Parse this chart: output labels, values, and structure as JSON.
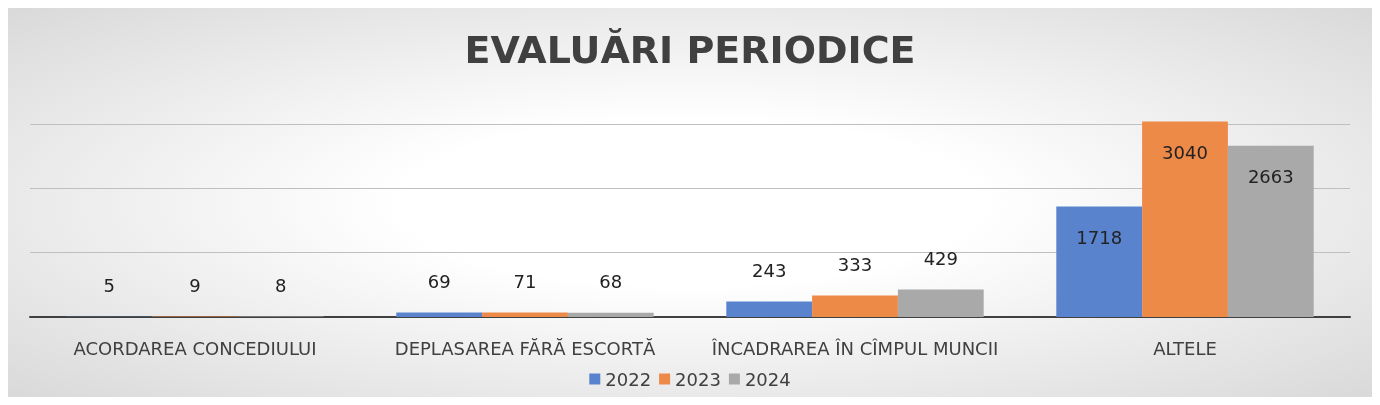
{
  "chart_data": {
    "type": "bar",
    "title": "EVALUĂRI PERIODICE",
    "categories": [
      "ACORDAREA CONCEDIULUI",
      "DEPLASAREA FĂRĂ ESCORTĂ",
      "ÎNCADRAREA ÎN CÎMPUL MUNCII",
      "ALTELE"
    ],
    "series": [
      {
        "name": "2022",
        "color": "#5a83cd",
        "values": [
          5,
          69,
          243,
          1718
        ]
      },
      {
        "name": "2023",
        "color": "#ee8a47",
        "values": [
          9,
          71,
          333,
          3040
        ]
      },
      {
        "name": "2024",
        "color": "#a9a9a9",
        "values": [
          8,
          68,
          429,
          2663
        ]
      }
    ],
    "yticks": [
      {
        "value": 0,
        "label": null
      },
      {
        "value": 1000,
        "label": null
      },
      {
        "value": 2000,
        "label": null
      },
      {
        "value": 3000,
        "label": null
      }
    ],
    "tick_labels": "x",
    "grid": "y",
    "legend": "bottom",
    "data_labels": true
  }
}
